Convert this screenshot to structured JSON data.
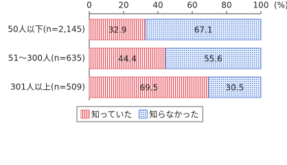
{
  "chart_data": {
    "type": "stacked-barh",
    "x_axis_label": "(%)",
    "categories": [
      "50人以下(n=2,145)",
      "51～300人(n=635)",
      "301人以上(n=509)"
    ],
    "series": [
      {
        "name": "知っていた",
        "color": "#e0505a",
        "values": [
          32.9,
          44.4,
          69.5
        ]
      },
      {
        "name": "知らなかった",
        "color": "#3a6fd0",
        "values": [
          67.1,
          55.6,
          30.5
        ]
      }
    ],
    "xlim": [
      0,
      100
    ],
    "xticks": [
      0,
      20,
      40,
      60,
      80,
      100
    ],
    "grid": false,
    "legend": "bottom"
  }
}
